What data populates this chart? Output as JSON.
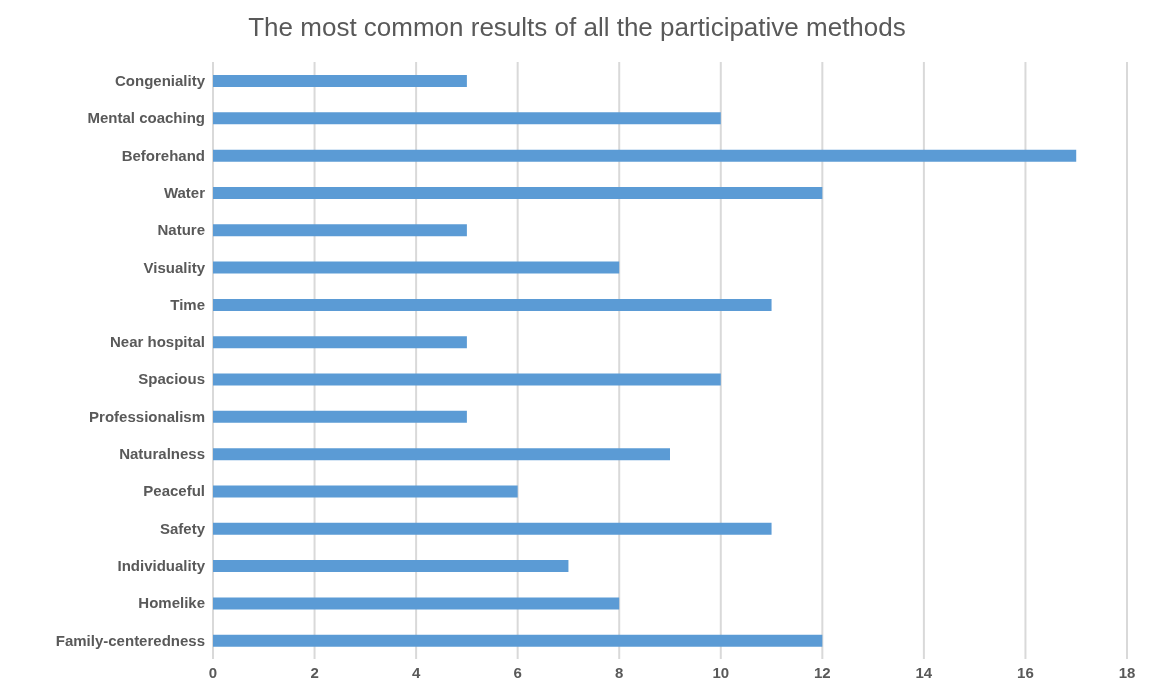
{
  "chart_data": {
    "type": "bar",
    "orientation": "horizontal",
    "title": "The most common results of all the participative methods",
    "categories": [
      "Congeniality",
      "Mental coaching",
      "Beforehand",
      "Water",
      "Nature",
      "Visuality",
      "Time",
      "Near hospital",
      "Spacious",
      "Professionalism",
      "Naturalness",
      "Peaceful",
      "Safety",
      "Individuality",
      "Homelike",
      "Family-centeredness"
    ],
    "values": [
      5,
      10,
      17,
      12,
      5,
      8,
      11,
      5,
      10,
      5,
      9,
      6,
      11,
      7,
      8,
      12
    ],
    "color": "#5b9bd5",
    "xlim": [
      0,
      18
    ],
    "xticks": [
      0,
      2,
      4,
      6,
      8,
      10,
      12,
      14,
      16,
      18
    ],
    "grid": "x"
  }
}
